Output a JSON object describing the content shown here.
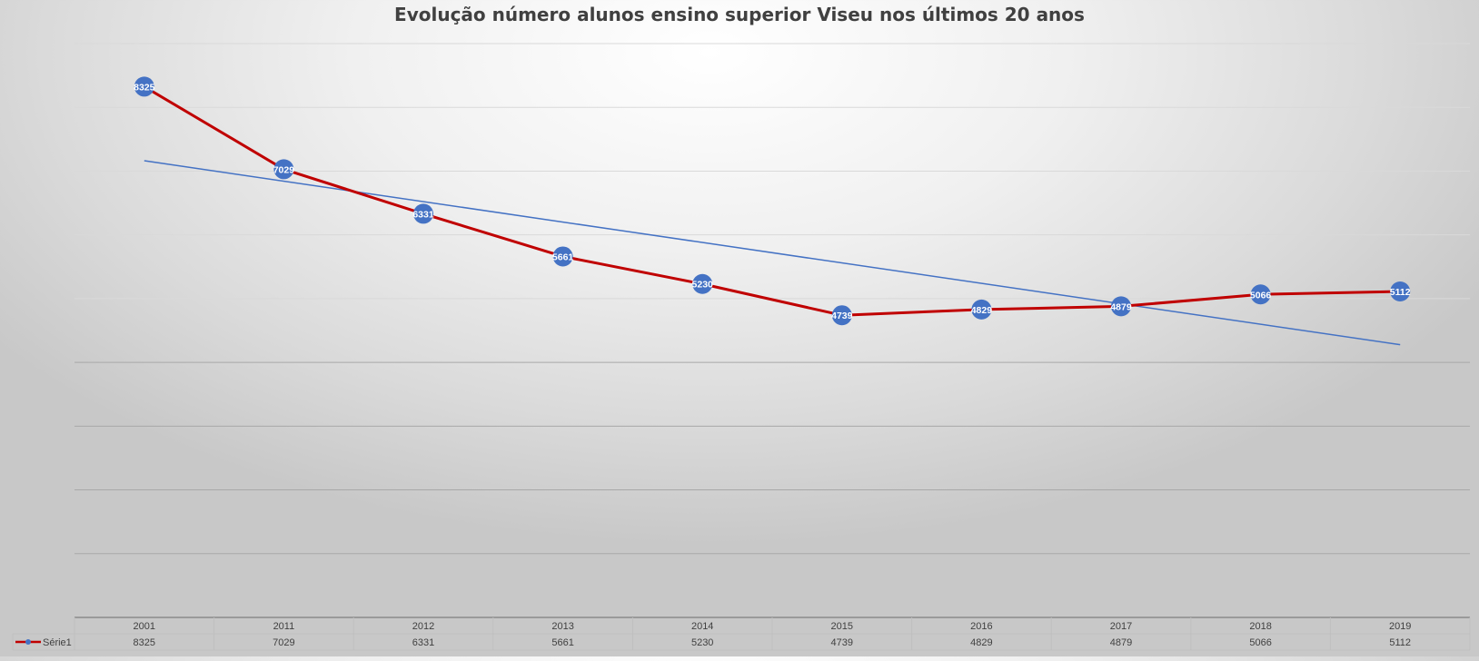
{
  "chart_data": {
    "type": "line",
    "title": "Evolução número alunos ensino superior Viseu nos últimos 20 anos",
    "xlabel": "",
    "ylabel": "",
    "categories": [
      "2001",
      "2011",
      "2012",
      "2013",
      "2014",
      "2015",
      "2016",
      "2017",
      "2018",
      "2019"
    ],
    "series": [
      {
        "name": "Série1",
        "values": [
          8325,
          7029,
          6331,
          5661,
          5230,
          4739,
          4829,
          4879,
          5066,
          5112
        ],
        "line_color": "#C00000",
        "marker_color": "#4472C4"
      }
    ],
    "trendline": {
      "type": "linear",
      "color": "#4472C4"
    },
    "ylim": [
      0,
      9000
    ],
    "grid": true,
    "data_labels": true,
    "data_table": true,
    "legend": "data-table"
  }
}
